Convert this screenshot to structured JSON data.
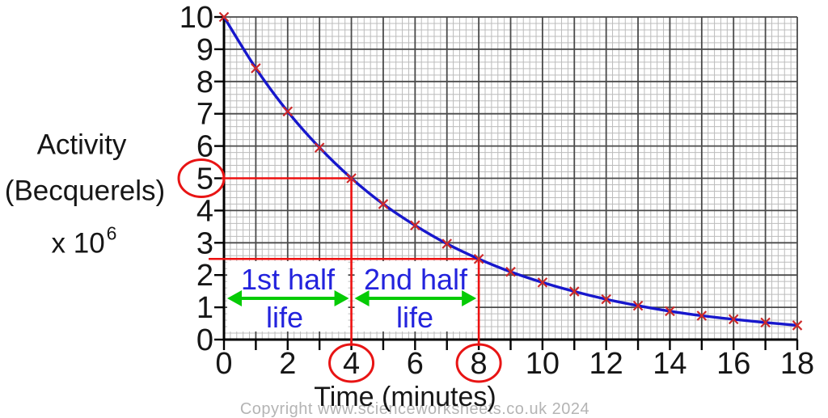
{
  "chart_data": {
    "type": "line",
    "title": "",
    "xlabel": "Time (minutes)",
    "ylabel": "Activity (Becquerels) x 10^6",
    "ylabel_lines": {
      "line1": "Activity",
      "line2": "(Becquerels)",
      "line3_base": "x 10",
      "line3_exp": "6"
    },
    "x": [
      0,
      1,
      2,
      3,
      4,
      5,
      6,
      7,
      8,
      9,
      10,
      11,
      12,
      13,
      14,
      15,
      16,
      17,
      18
    ],
    "series": [
      {
        "name": "Activity",
        "values": [
          10,
          8.41,
          7.07,
          5.95,
          5.0,
          4.2,
          3.54,
          2.97,
          2.5,
          2.1,
          1.77,
          1.49,
          1.25,
          1.05,
          0.88,
          0.74,
          0.63,
          0.53,
          0.44
        ]
      }
    ],
    "xlim": [
      0,
      18
    ],
    "ylim": [
      0,
      10
    ],
    "x_tick_labels": [
      0,
      2,
      4,
      6,
      8,
      10,
      12,
      14,
      16,
      18
    ],
    "y_tick_labels": [
      0,
      1,
      2,
      3,
      4,
      5,
      6,
      7,
      8,
      9,
      10
    ],
    "x_minor_per_unit": 5,
    "y_minor_per_unit": 5,
    "grid": "graph-paper: dark major line every 1 unit, light minor every 0.2",
    "marker": "red x at every minute",
    "legend": "none",
    "annotations": {
      "guides": {
        "points": [
          {
            "x": 4,
            "y": 5
          },
          {
            "x": 8,
            "y": 2.5
          }
        ]
      },
      "circled": {
        "y_tick": 5,
        "x_ticks": [
          4,
          8
        ]
      },
      "spans": [
        {
          "from": 0,
          "to": 4,
          "line1": "1st half",
          "line2": "life"
        },
        {
          "from": 4,
          "to": 8,
          "line1": "2nd half",
          "line2": "life"
        }
      ]
    }
  },
  "colors": {
    "curve": "#1717cc",
    "marker": "#cf2929",
    "guide": "#ee1111",
    "circle": "#e81414",
    "arrow": "#05cb05",
    "annotation_text": "#2323dd",
    "grid_major": "#4a4a4a",
    "grid_minor": "#bcbcbc",
    "axis": "#000000",
    "tick_text": "#161616",
    "copyright_text": "#b4b4b4"
  },
  "footer": {
    "copyright": "Copyright www.scienceworksheets.co.uk 2024"
  }
}
